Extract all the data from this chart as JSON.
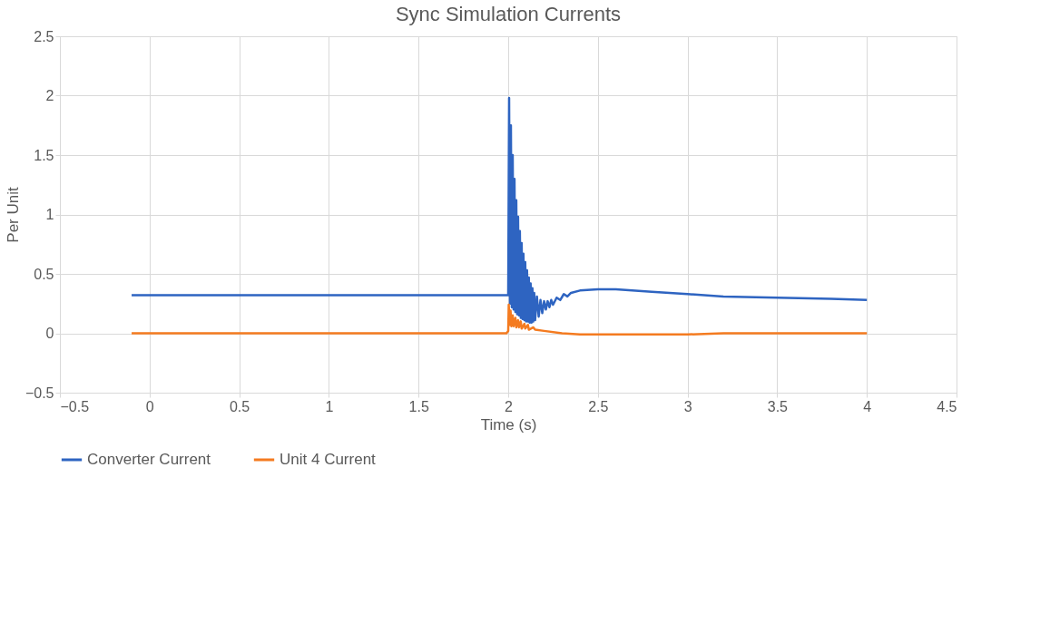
{
  "chart_data": {
    "type": "line",
    "title": "Sync Simulation Currents",
    "xlabel": "Time (s)",
    "ylabel": "Per Unit",
    "xlim": [
      -0.5,
      4.5
    ],
    "xticks": [
      -0.5,
      0,
      0.5,
      1,
      1.5,
      2,
      2.5,
      3,
      3.5,
      4,
      4.5
    ],
    "ylim": [
      -0.5,
      2.5
    ],
    "yticks": [
      -0.5,
      0,
      0.5,
      1,
      1.5,
      2,
      2.5
    ],
    "grid": true,
    "legend": "bottom",
    "marker": "none",
    "line_style": "solid",
    "series": [
      {
        "name": "Converter Current",
        "color": "#2e64c1",
        "x": [
          -0.1,
          2.0,
          2.005,
          2.01,
          2.015,
          2.02,
          2.025,
          2.03,
          2.035,
          2.04,
          2.045,
          2.05,
          2.055,
          2.06,
          2.065,
          2.07,
          2.075,
          2.08,
          2.085,
          2.09,
          2.095,
          2.1,
          2.105,
          2.11,
          2.115,
          2.12,
          2.125,
          2.13,
          2.135,
          2.14,
          2.145,
          2.15,
          2.16,
          2.17,
          2.18,
          2.19,
          2.2,
          2.21,
          2.22,
          2.23,
          2.24,
          2.25,
          2.27,
          2.29,
          2.31,
          2.33,
          2.35,
          2.4,
          2.5,
          2.6,
          2.8,
          3.0,
          3.2,
          3.5,
          3.8,
          4.0
        ],
        "values": [
          0.32,
          0.32,
          1.98,
          0.25,
          1.75,
          0.22,
          1.5,
          0.2,
          1.3,
          0.18,
          1.12,
          0.16,
          0.98,
          0.15,
          0.86,
          0.13,
          0.76,
          0.12,
          0.67,
          0.11,
          0.6,
          0.1,
          0.53,
          0.1,
          0.47,
          0.09,
          0.42,
          0.09,
          0.38,
          0.1,
          0.34,
          0.11,
          0.31,
          0.14,
          0.28,
          0.17,
          0.27,
          0.2,
          0.27,
          0.22,
          0.28,
          0.24,
          0.3,
          0.28,
          0.33,
          0.31,
          0.34,
          0.36,
          0.37,
          0.37,
          0.35,
          0.33,
          0.31,
          0.3,
          0.29,
          0.28
        ]
      },
      {
        "name": "Unit 4 Current",
        "color": "#f47b20",
        "x": [
          -0.1,
          1.99,
          2.0,
          2.003,
          2.008,
          2.013,
          2.018,
          2.025,
          2.03,
          2.04,
          2.045,
          2.055,
          2.06,
          2.07,
          2.075,
          2.09,
          2.095,
          2.11,
          2.115,
          2.14,
          2.15,
          2.2,
          2.3,
          2.4,
          2.6,
          3.0,
          3.2,
          4.0
        ],
        "values": [
          0,
          0,
          0.02,
          0.24,
          0.07,
          0.19,
          0.06,
          0.15,
          0.06,
          0.13,
          0.05,
          0.11,
          0.05,
          0.1,
          0.04,
          0.08,
          0.04,
          0.07,
          0.03,
          0.05,
          0.03,
          0.02,
          0,
          -0.01,
          -0.01,
          -0.01,
          0,
          0
        ]
      }
    ]
  }
}
